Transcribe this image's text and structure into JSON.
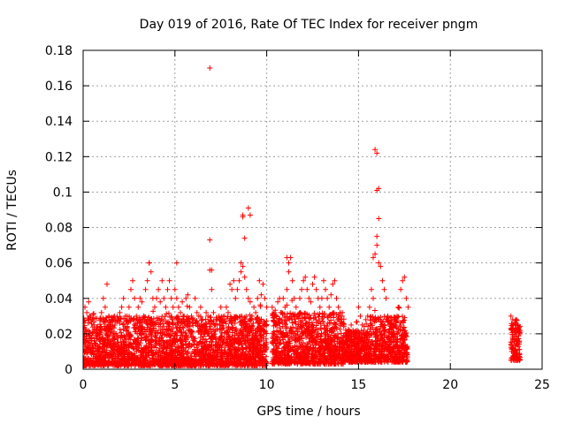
{
  "chart_data": {
    "type": "scatter",
    "title": "Day 019 of 2016, Rate Of TEC Index for receiver pngm",
    "xlabel": "GPS time / hours",
    "ylabel": "ROTI / TECUs",
    "xlim": [
      0,
      25
    ],
    "ylim": [
      0,
      0.18
    ],
    "xticks": [
      0,
      5,
      10,
      15,
      20,
      25
    ],
    "xtick_labels": [
      "0",
      "5",
      "10",
      "15",
      "20",
      "25"
    ],
    "yticks": [
      0,
      0.02,
      0.04,
      0.06,
      0.08,
      0.1,
      0.12,
      0.14,
      0.16,
      0.18
    ],
    "ytick_labels": [
      "0",
      "0.02",
      "0.04",
      "0.06",
      "0.08",
      "0.1",
      "0.12",
      "0.14",
      "0.16",
      "0.18"
    ],
    "grid": true,
    "marker": "plus",
    "color": "#ff0000",
    "series": [
      {
        "name": "ROTI",
        "x": [
          0.0,
          0.1,
          0.2,
          0.3,
          0.4,
          0.5,
          0.6,
          0.7,
          0.8,
          0.9,
          1.0,
          1.1,
          1.2,
          1.3,
          1.4,
          1.5,
          1.6,
          1.7,
          1.8,
          1.9,
          2.0,
          2.1,
          2.2,
          2.3,
          2.4,
          2.5,
          2.6,
          2.7,
          2.8,
          2.9,
          3.0,
          3.1,
          3.2,
          3.3,
          3.4,
          3.5,
          3.6,
          3.7,
          3.8,
          3.9,
          4.0,
          4.1,
          4.2,
          4.3,
          4.4,
          4.5,
          4.6,
          4.7,
          4.8,
          4.9,
          5.0,
          5.1,
          5.2,
          5.3,
          5.4,
          5.5,
          5.6,
          5.7,
          5.8,
          5.9,
          6.0,
          6.1,
          6.2,
          6.3,
          6.4,
          6.5,
          6.6,
          6.7,
          6.8,
          6.9,
          7.0,
          7.1,
          7.2,
          7.3,
          7.4,
          7.5,
          7.6,
          7.7,
          7.8,
          7.9,
          8.0,
          8.1,
          8.2,
          8.3,
          8.4,
          8.5,
          8.6,
          8.7,
          8.8,
          8.9,
          9.0,
          9.1,
          9.2,
          9.3,
          9.4,
          9.5,
          9.6,
          9.7,
          9.8,
          9.9,
          10.0,
          10.3,
          10.4,
          10.5,
          10.6,
          10.7,
          10.8,
          10.9,
          11.0,
          11.1,
          11.2,
          11.3,
          11.4,
          11.5,
          11.6,
          11.7,
          11.8,
          11.9,
          12.0,
          12.1,
          12.2,
          12.3,
          12.4,
          12.5,
          12.6,
          12.7,
          12.8,
          12.9,
          13.0,
          13.1,
          13.2,
          13.3,
          13.4,
          13.5,
          13.6,
          13.7,
          13.8,
          13.9,
          14.0,
          14.1,
          14.2,
          14.3,
          14.4,
          14.5,
          14.6,
          14.7,
          14.8,
          14.9,
          15.0,
          15.1,
          15.2,
          15.3,
          15.4,
          15.5,
          15.6,
          15.7,
          15.8,
          15.9,
          16.0,
          16.1,
          16.2,
          16.3,
          16.4,
          16.5,
          16.6,
          16.7,
          16.8,
          16.9,
          17.0,
          17.1,
          17.2,
          17.3,
          17.4,
          17.5,
          17.6,
          17.7,
          23.3,
          23.4,
          23.5,
          23.6,
          23.7,
          23.8,
          6.9,
          6.9,
          8.7,
          8.8,
          9.0,
          9.1,
          15.9,
          16.0,
          16.0,
          16.1,
          16.1,
          16.0,
          15.8,
          3.6,
          5.1,
          11.1,
          11.2,
          7.0,
          8.6,
          8.7
        ],
        "y": [
          0.015,
          0.035,
          0.032,
          0.038,
          0.03,
          0.028,
          0.025,
          0.022,
          0.02,
          0.018,
          0.032,
          0.04,
          0.035,
          0.048,
          0.03,
          0.025,
          0.028,
          0.03,
          0.02,
          0.018,
          0.032,
          0.035,
          0.04,
          0.03,
          0.028,
          0.035,
          0.045,
          0.05,
          0.04,
          0.03,
          0.035,
          0.04,
          0.038,
          0.03,
          0.045,
          0.05,
          0.06,
          0.055,
          0.04,
          0.035,
          0.04,
          0.045,
          0.038,
          0.05,
          0.04,
          0.035,
          0.045,
          0.05,
          0.04,
          0.035,
          0.045,
          0.04,
          0.035,
          0.032,
          0.038,
          0.03,
          0.04,
          0.042,
          0.035,
          0.03,
          0.028,
          0.04,
          0.032,
          0.03,
          0.035,
          0.028,
          0.025,
          0.032,
          0.03,
          0.056,
          0.045,
          0.032,
          0.025,
          0.028,
          0.03,
          0.035,
          0.028,
          0.03,
          0.035,
          0.032,
          0.048,
          0.045,
          0.05,
          0.04,
          0.045,
          0.05,
          0.06,
          0.058,
          0.052,
          0.045,
          0.04,
          0.038,
          0.03,
          0.035,
          0.032,
          0.04,
          0.05,
          0.042,
          0.048,
          0.04,
          0.035,
          0.035,
          0.032,
          0.03,
          0.038,
          0.04,
          0.032,
          0.04,
          0.035,
          0.045,
          0.055,
          0.063,
          0.05,
          0.04,
          0.035,
          0.03,
          0.04,
          0.045,
          0.05,
          0.052,
          0.045,
          0.04,
          0.038,
          0.048,
          0.052,
          0.045,
          0.04,
          0.035,
          0.04,
          0.05,
          0.045,
          0.04,
          0.035,
          0.042,
          0.048,
          0.05,
          0.04,
          0.035,
          0.032,
          0.03,
          0.025,
          0.022,
          0.02,
          0.018,
          0.025,
          0.022,
          0.02,
          0.018,
          0.035,
          0.03,
          0.025,
          0.022,
          0.028,
          0.03,
          0.035,
          0.045,
          0.04,
          0.065,
          0.07,
          0.06,
          0.058,
          0.05,
          0.045,
          0.04,
          0.03,
          0.025,
          0.022,
          0.02,
          0.025,
          0.03,
          0.035,
          0.045,
          0.05,
          0.052,
          0.04,
          0.035,
          0.03,
          0.028,
          0.026,
          0.028,
          0.025,
          0.02,
          0.17,
          0.073,
          0.086,
          0.074,
          0.091,
          0.087,
          0.124,
          0.122,
          0.101,
          0.102,
          0.085,
          0.075,
          0.063,
          0.06,
          0.06,
          0.063,
          0.06,
          0.056,
          0.055,
          0.087
        ]
      }
    ],
    "dense_band": {
      "description_hidden": true,
      "segments": [
        {
          "x0": 0.0,
          "x1": 10.0,
          "low": 0.002,
          "high": 0.03
        },
        {
          "x0": 10.3,
          "x1": 14.2,
          "low": 0.003,
          "high": 0.032
        },
        {
          "x0": 14.2,
          "x1": 15.6,
          "low": 0.004,
          "high": 0.022
        },
        {
          "x0": 15.6,
          "x1": 17.7,
          "low": 0.004,
          "high": 0.03
        },
        {
          "x0": 23.3,
          "x1": 23.8,
          "low": 0.005,
          "high": 0.028
        }
      ]
    }
  }
}
